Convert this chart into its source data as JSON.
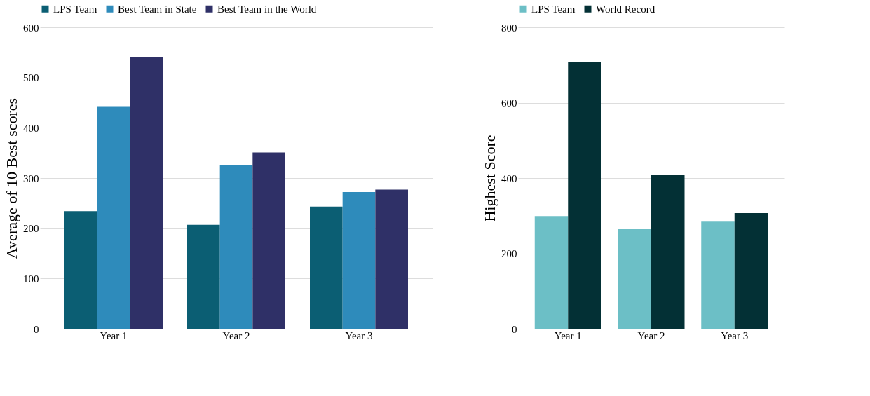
{
  "chart_data": [
    {
      "type": "bar",
      "categories": [
        "Year 1",
        "Year 2",
        "Year 3"
      ],
      "ylabel": "Average of 10 Best scores",
      "ylim": [
        0,
        600
      ],
      "yticks": [
        0,
        100,
        200,
        300,
        400,
        500,
        600
      ],
      "grid": "y",
      "legend": "top",
      "series": [
        {
          "name": "LPS Team",
          "color": "#0b5e73",
          "values": [
            234,
            207,
            243
          ]
        },
        {
          "name": "Best Team in State",
          "color": "#2e8bbb",
          "values": [
            443,
            325,
            272
          ]
        },
        {
          "name": "Best Team in the World",
          "color": "#2f3067",
          "values": [
            541,
            351,
            277
          ]
        }
      ]
    },
    {
      "type": "bar",
      "categories": [
        "Year 1",
        "Year 2",
        "Year 3"
      ],
      "ylabel": "Highest Score",
      "ylim": [
        0,
        800
      ],
      "yticks": [
        0,
        200,
        400,
        600,
        800
      ],
      "grid": "y",
      "legend": "top",
      "series": [
        {
          "name": "LPS Team",
          "color": "#6cbfc6",
          "values": [
            299,
            264,
            284
          ]
        },
        {
          "name": "World Record",
          "color": "#033035",
          "values": [
            707,
            408,
            307
          ]
        }
      ]
    }
  ]
}
